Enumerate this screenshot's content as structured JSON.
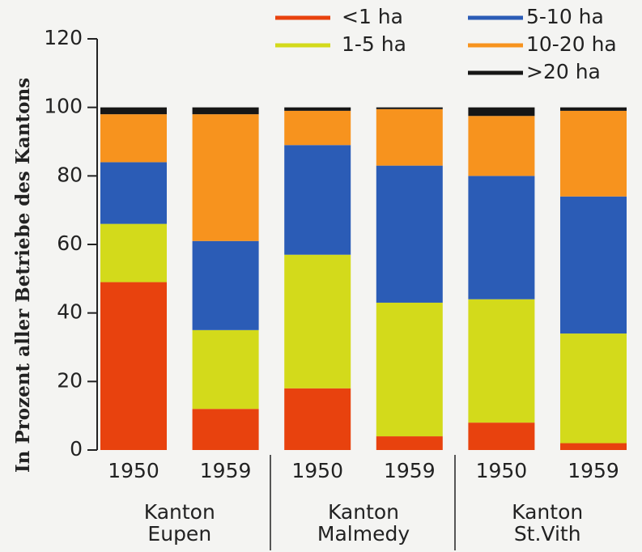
{
  "chart_data": {
    "type": "stacked_bar",
    "y_label": "In Prozent aller Betriebe des Kantons",
    "categories": [
      "1950",
      "1959",
      "1950",
      "1959",
      "1950",
      "1959"
    ],
    "groups": [
      [
        "Kanton",
        "Eupen"
      ],
      [
        "Kanton",
        "Malmedy"
      ],
      [
        "Kanton",
        "St.Vith"
      ]
    ],
    "series": [
      {
        "name": "<1 ha",
        "color": "#e8420e",
        "values": [
          49,
          12,
          18,
          4,
          8,
          2
        ]
      },
      {
        "name": "1-5 ha",
        "color": "#d3da1b",
        "values": [
          17,
          23,
          39,
          39,
          36,
          32
        ]
      },
      {
        "name": "5-10 ha",
        "color": "#2b5cb6",
        "values": [
          18,
          26,
          32,
          40,
          36,
          40
        ]
      },
      {
        "name": "10-20 ha",
        "color": "#f7931e",
        "values": [
          14,
          37,
          10,
          16.5,
          17.5,
          25
        ]
      },
      {
        "name": ">20 ha",
        "color": "#161616",
        "values": [
          2,
          2,
          1,
          0.5,
          2.5,
          1
        ]
      }
    ],
    "ylim": [
      0,
      120
    ],
    "yticks": [
      0,
      20,
      40,
      60,
      80,
      100,
      120
    ]
  }
}
